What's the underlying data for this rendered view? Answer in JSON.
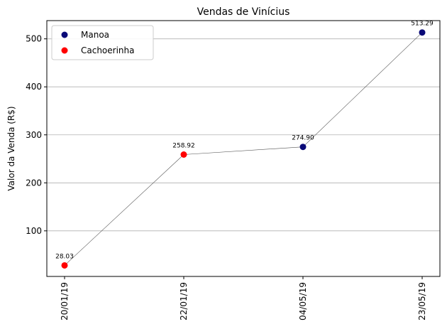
{
  "chart_data": {
    "type": "scatter",
    "title": "Vendas de Vinícius",
    "xlabel": "",
    "ylabel": "Valor da Venda (R$)",
    "categories": [
      "20/01/19",
      "22/01/19",
      "04/05/19",
      "23/05/19"
    ],
    "points": [
      {
        "x": "20/01/19",
        "y": 28.03,
        "label": "28.03",
        "series": "Cachoerinha"
      },
      {
        "x": "22/01/19",
        "y": 258.92,
        "label": "258.92",
        "series": "Cachoerinha"
      },
      {
        "x": "04/05/19",
        "y": 274.9,
        "label": "274.90",
        "series": "Manoa"
      },
      {
        "x": "23/05/19",
        "y": 513.29,
        "label": "513.29",
        "series": "Manoa"
      }
    ],
    "series": [
      {
        "name": "Manoa",
        "color": "#0a0a78"
      },
      {
        "name": "Cachoerinha",
        "color": "#ff0000"
      }
    ],
    "connecting_line_color": "#555555",
    "yticks": [
      100,
      200,
      300,
      400,
      500
    ],
    "ylim": [
      5,
      538
    ],
    "grid": "y",
    "legend_position": "top-left"
  }
}
